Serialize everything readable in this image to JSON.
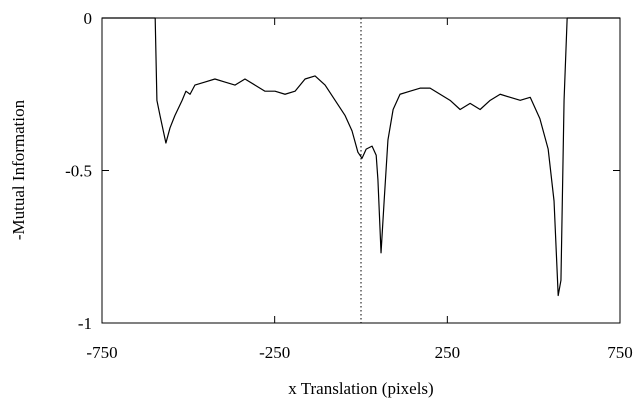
{
  "chart_data": {
    "type": "line",
    "xlabel": "x Translation (pixels)",
    "ylabel": "-Mutual Information",
    "x": [
      -750,
      -596,
      -591,
      -582,
      -565,
      -553,
      -539,
      -518,
      -507,
      -495,
      -481,
      -452,
      -423,
      -394,
      -365,
      -336,
      -307,
      -278,
      -249,
      -220,
      -191,
      -162,
      -133,
      -104,
      -75,
      -46,
      -26,
      -9,
      3,
      15,
      32,
      44,
      49,
      58,
      67,
      78,
      93,
      113,
      142,
      171,
      200,
      229,
      258,
      287,
      316,
      345,
      374,
      403,
      432,
      461,
      490,
      518,
      542,
      559,
      571,
      579,
      588,
      597,
      750
    ],
    "values": [
      0,
      0,
      -0.27,
      -0.32,
      -0.41,
      -0.36,
      -0.32,
      -0.27,
      -0.24,
      -0.25,
      -0.22,
      -0.21,
      -0.2,
      -0.21,
      -0.22,
      -0.2,
      -0.22,
      -0.24,
      -0.24,
      -0.25,
      -0.24,
      -0.2,
      -0.19,
      -0.22,
      -0.27,
      -0.32,
      -0.37,
      -0.44,
      -0.46,
      -0.43,
      -0.42,
      -0.45,
      -0.53,
      -0.77,
      -0.6,
      -0.4,
      -0.3,
      -0.25,
      -0.24,
      -0.23,
      -0.23,
      -0.25,
      -0.27,
      -0.3,
      -0.28,
      -0.3,
      -0.27,
      -0.25,
      -0.26,
      -0.27,
      -0.26,
      -0.33,
      -0.43,
      -0.6,
      -0.91,
      -0.86,
      -0.27,
      0,
      0
    ],
    "color": "#000000",
    "xlim": [
      -750,
      750
    ],
    "xticks": [
      -750,
      -250,
      250,
      750
    ],
    "ylim": [
      -1,
      0
    ],
    "yticks": [
      -1,
      -0.5,
      0
    ],
    "vline": 0
  }
}
